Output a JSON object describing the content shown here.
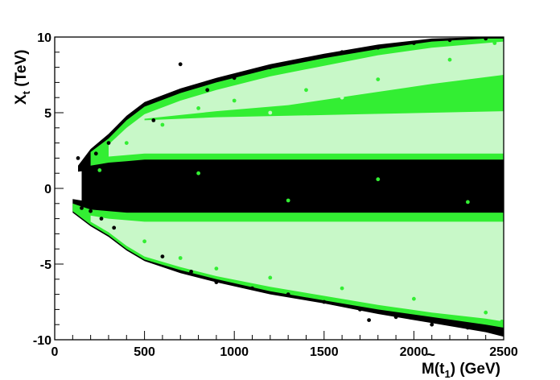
{
  "chart_data": {
    "type": "scatter",
    "title": "",
    "xlabel": {
      "pre": "M(",
      "symbol": "t",
      "tilde": "~",
      "sub": "1",
      "post": ") (GeV)"
    },
    "ylabel": {
      "main": "X",
      "sub": "t",
      "post": " (TeV)"
    },
    "xlim": [
      0,
      2500
    ],
    "ylim": [
      -10,
      10
    ],
    "xticks": [
      0,
      500,
      1000,
      1500,
      2000,
      2500
    ],
    "yticks": [
      -10,
      -5,
      0,
      5,
      10
    ],
    "grid": false,
    "legend": "none",
    "colors": {
      "black": "#000000",
      "green": "#33ee33",
      "light_green": "#c8f8c8"
    },
    "series": [
      {
        "color": "black",
        "points": [
          [
            130,
            2
          ],
          [
            150,
            -1.3
          ],
          [
            170,
            1.4
          ],
          [
            200,
            -1.5
          ],
          [
            230,
            2.3
          ],
          [
            260,
            -2
          ],
          [
            300,
            3
          ],
          [
            330,
            -2.6
          ],
          [
            380,
            1
          ],
          [
            400,
            -1
          ],
          [
            450,
            0.5
          ],
          [
            500,
            -0.5
          ],
          [
            550,
            4.5
          ],
          [
            600,
            -4.5
          ],
          [
            700,
            8.2
          ],
          [
            760,
            -5.5
          ],
          [
            850,
            6.5
          ],
          [
            900,
            -6.2
          ],
          [
            1000,
            7.3
          ],
          [
            1100,
            -6.6
          ],
          [
            1200,
            8
          ],
          [
            1300,
            -7
          ],
          [
            1400,
            8.5
          ],
          [
            1500,
            -7.5
          ],
          [
            1600,
            9
          ],
          [
            1700,
            -8
          ],
          [
            1750,
            -8.7
          ],
          [
            1800,
            9.3
          ],
          [
            1900,
            -8.5
          ],
          [
            2000,
            9.6
          ],
          [
            2100,
            -9
          ],
          [
            2200,
            9.8
          ],
          [
            2300,
            -9.2
          ],
          [
            2400,
            9.9
          ],
          [
            2480,
            -9.6
          ],
          [
            1000,
            0.8
          ],
          [
            1500,
            -0.6
          ],
          [
            2000,
            0.3
          ],
          [
            2400,
            -0.4
          ]
        ]
      },
      {
        "color": "green",
        "points": [
          [
            250,
            1.2
          ],
          [
            330,
            -1.8
          ],
          [
            400,
            3
          ],
          [
            500,
            -3.5
          ],
          [
            600,
            4.2
          ],
          [
            700,
            -4.6
          ],
          [
            800,
            5.3
          ],
          [
            900,
            -5.3
          ],
          [
            1000,
            5.8
          ],
          [
            1200,
            -5.9
          ],
          [
            1400,
            6.5
          ],
          [
            1600,
            -6.6
          ],
          [
            1800,
            7.2
          ],
          [
            2000,
            -7.3
          ],
          [
            2200,
            8.5
          ],
          [
            2400,
            -8.2
          ],
          [
            2450,
            9.6
          ],
          [
            2490,
            -8.8
          ],
          [
            800,
            1
          ],
          [
            1300,
            -0.8
          ],
          [
            1800,
            0.6
          ],
          [
            2300,
            -0.9
          ]
        ]
      },
      {
        "color": "light_green",
        "points": [
          [
            400,
            2.5
          ],
          [
            500,
            -2.8
          ],
          [
            800,
            4
          ],
          [
            900,
            -4
          ],
          [
            1200,
            5
          ],
          [
            1300,
            -4.8
          ],
          [
            1600,
            6
          ],
          [
            1700,
            -5.5
          ],
          [
            2000,
            7
          ],
          [
            2100,
            -6.5
          ],
          [
            2300,
            8.5
          ],
          [
            2400,
            -7.5
          ]
        ]
      }
    ],
    "regions": [
      {
        "name": "upper-black-edge",
        "color": "black",
        "x": [
          130,
          200,
          300,
          400,
          500,
          700,
          900,
          1200,
          1500,
          1800,
          2100,
          2400,
          2500
        ],
        "lower": [
          1.1,
          1.2,
          1.4,
          1.5,
          1.5,
          1.5,
          1.5,
          1.5,
          1.5,
          1.5,
          1.5,
          1.5,
          1.5
        ],
        "upper": [
          1.5,
          2.6,
          3.6,
          4.8,
          5.7,
          6.6,
          7.3,
          8.2,
          8.9,
          9.5,
          9.9,
          10,
          10
        ]
      },
      {
        "name": "lower-black-edge",
        "color": "black",
        "x": [
          100,
          200,
          300,
          400,
          500,
          700,
          900,
          1200,
          1500,
          1800,
          2100,
          2400,
          2500
        ],
        "lower": [
          -1.6,
          -2.5,
          -3.2,
          -4.1,
          -4.8,
          -5.6,
          -6.2,
          -7,
          -7.6,
          -8.3,
          -8.9,
          -9.5,
          -9.8
        ],
        "upper": [
          -0.7,
          -0.9,
          -1.1,
          -1.4,
          -1.4,
          -1.4,
          -1.4,
          -1.4,
          -1.4,
          -1.4,
          -1.4,
          -1.4,
          -1.4
        ]
      },
      {
        "name": "central-black-band",
        "color": "black",
        "x": [
          150,
          300,
          400,
          2500
        ],
        "lower": [
          -1.4,
          -1.6,
          -1.8,
          -1.8
        ],
        "upper": [
          1.2,
          1.5,
          1.7,
          1.7
        ]
      },
      {
        "name": "upper-green",
        "color": "green",
        "x": [
          200,
          300,
          400,
          500,
          700,
          900,
          1200,
          1500,
          1800,
          2100,
          2400,
          2500
        ],
        "lower": [
          1.5,
          1.7,
          1.8,
          1.9,
          1.9,
          1.9,
          1.9,
          1.9,
          1.9,
          1.9,
          1.9,
          1.9
        ],
        "upper": [
          2.4,
          3.3,
          4.5,
          5.4,
          6.3,
          7,
          7.9,
          8.6,
          9.2,
          9.7,
          9.9,
          9.9
        ]
      },
      {
        "name": "upper-light",
        "color": "light_green",
        "x": [
          300,
          400,
          500,
          700,
          900,
          1200,
          1500,
          1800,
          2100,
          2400,
          2500
        ],
        "lower": [
          2.1,
          2.2,
          2.3,
          2.3,
          2.3,
          2.3,
          2.3,
          2.3,
          2.3,
          2.3,
          2.3
        ],
        "upper": [
          2.9,
          4,
          4.9,
          5.8,
          6.5,
          7.4,
          8.1,
          8.8,
          9.3,
          9.6,
          9.7
        ]
      },
      {
        "name": "upper-green-stripe",
        "color": "green",
        "x": [
          500,
          900,
          1300,
          1700,
          2100,
          2500
        ],
        "lower": [
          4.5,
          4.7,
          4.8,
          4.9,
          5,
          5.1
        ],
        "upper": [
          4.6,
          5.1,
          5.5,
          6.2,
          6.9,
          7.5
        ]
      },
      {
        "name": "lower-green",
        "color": "green",
        "x": [
          100,
          200,
          300,
          400,
          500,
          700,
          900,
          1200,
          1500,
          1800,
          2100,
          2400,
          2500
        ],
        "lower": [
          -1.5,
          -2.4,
          -3.1,
          -4,
          -4.7,
          -5.4,
          -6,
          -6.8,
          -7.4,
          -8,
          -8.5,
          -9,
          -9.2
        ],
        "upper": [
          -1,
          -1.4,
          -1.5,
          -1.6,
          -1.6,
          -1.6,
          -1.6,
          -1.6,
          -1.6,
          -1.6,
          -1.6,
          -1.6,
          -1.6
        ]
      },
      {
        "name": "lower-light",
        "color": "light_green",
        "x": [
          200,
          300,
          400,
          500,
          700,
          900,
          1200,
          1500,
          1800,
          2100,
          2400,
          2500
        ],
        "lower": [
          -2.2,
          -2.9,
          -3.8,
          -4.5,
          -5.2,
          -5.8,
          -6.5,
          -7.1,
          -7.7,
          -8.2,
          -8.6,
          -8.8
        ],
        "upper": [
          -1.8,
          -2,
          -2.1,
          -2.2,
          -2.2,
          -2.2,
          -2.2,
          -2.2,
          -2.2,
          -2.2,
          -2.2,
          -2.2
        ]
      }
    ]
  }
}
